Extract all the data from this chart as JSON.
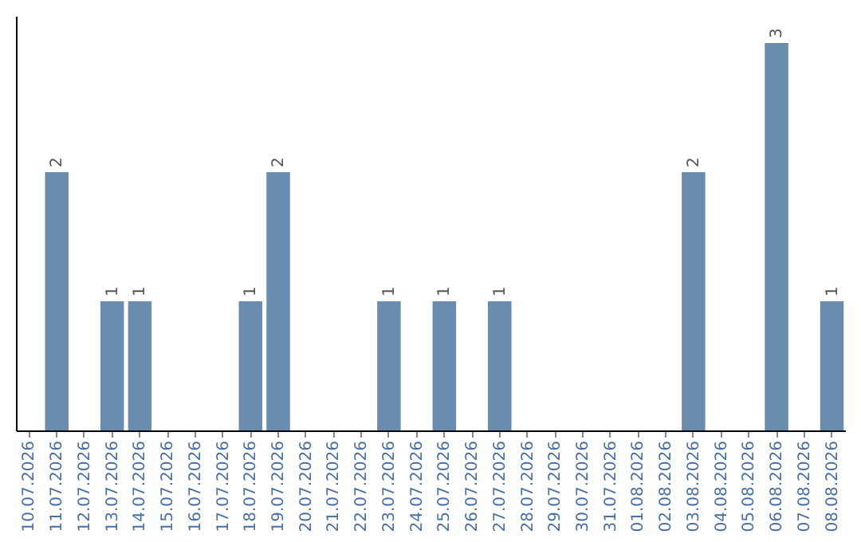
{
  "chart_data": {
    "type": "bar",
    "categories": [
      "10.07.2026",
      "11.07.2026",
      "12.07.2026",
      "13.07.2026",
      "14.07.2026",
      "15.07.2026",
      "16.07.2026",
      "17.07.2026",
      "18.07.2026",
      "19.07.2026",
      "20.07.2026",
      "21.07.2026",
      "22.07.2026",
      "23.07.2026",
      "24.07.2026",
      "25.07.2026",
      "26.07.2026",
      "27.07.2026",
      "28.07.2026",
      "29.07.2026",
      "30.07.2026",
      "31.07.2026",
      "01.08.2026",
      "02.08.2026",
      "03.08.2026",
      "04.08.2026",
      "05.08.2026",
      "06.08.2026",
      "07.08.2026",
      "08.08.2026"
    ],
    "values": [
      0,
      2,
      0,
      1,
      1,
      0,
      0,
      0,
      1,
      2,
      0,
      0,
      0,
      1,
      0,
      1,
      0,
      1,
      0,
      0,
      0,
      0,
      0,
      0,
      2,
      0,
      0,
      3,
      0,
      1
    ],
    "value_labels": [
      null,
      "2",
      null,
      "1",
      "1",
      null,
      null,
      null,
      "1",
      "2",
      null,
      null,
      null,
      "1",
      null,
      "1",
      null,
      "1",
      null,
      null,
      null,
      null,
      null,
      null,
      "2",
      null,
      null,
      "3",
      null,
      "1"
    ],
    "color": "#6a8caf",
    "tick_labels": "x",
    "grid": false
  }
}
